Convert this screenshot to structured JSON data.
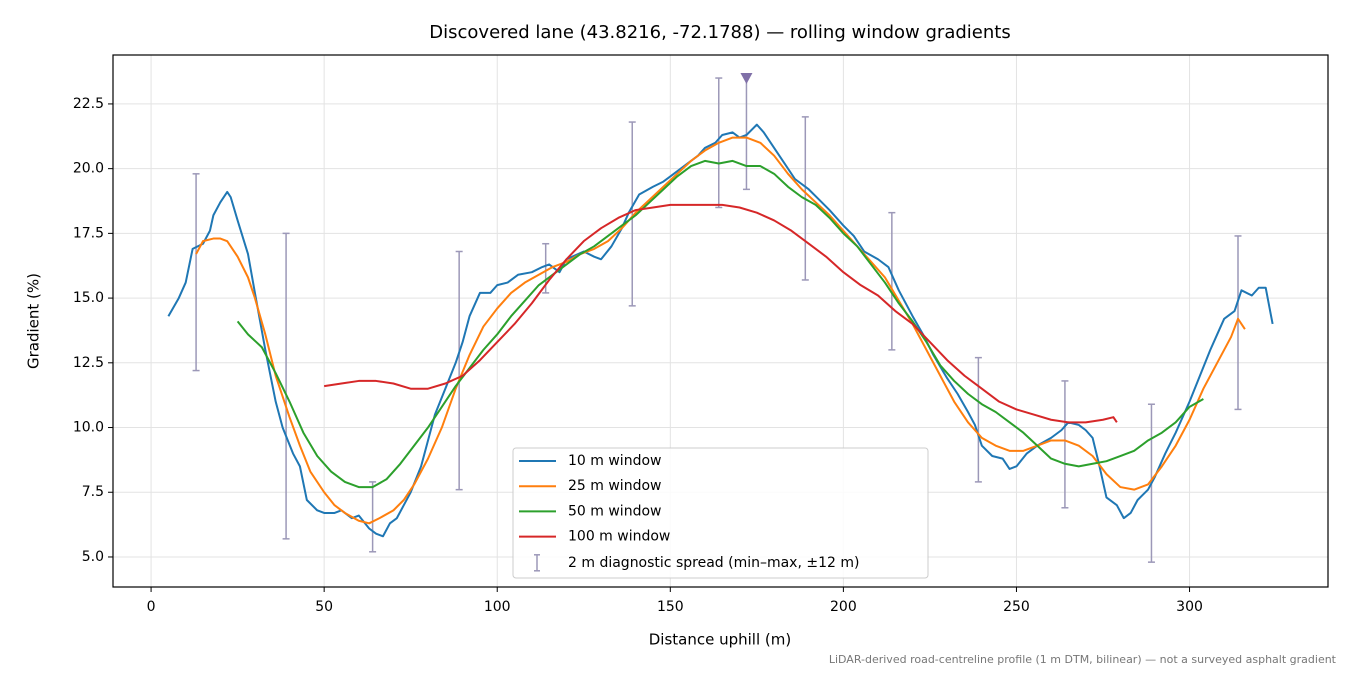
{
  "chart_data": {
    "type": "line",
    "title": "Discovered lane (43.8216, -72.1788) — rolling window gradients",
    "x_label": "Distance uphill (m)",
    "y_label": "Gradient (%)",
    "footnote": "LiDAR-derived road-centreline profile (1 m DTM, bilinear) — not a surveyed asphalt gradient",
    "xlim": [
      -11,
      340
    ],
    "ylim": [
      3.84,
      24.39
    ],
    "xticks": [
      0,
      50,
      100,
      150,
      200,
      250,
      300
    ],
    "yticks": [
      {
        "value": 5,
        "label": "5.0"
      },
      7.5,
      {
        "value": 10,
        "label": "10.0"
      },
      12.5,
      {
        "value": 15,
        "label": "15.0"
      },
      17.5,
      {
        "value": 20,
        "label": "20.0"
      },
      22.5
    ],
    "grid": true,
    "legend": "lower center",
    "series": [
      {
        "name": "10 m window",
        "color": "#1f77b4",
        "x": [
          5,
          8,
          10,
          12,
          15,
          17,
          18,
          20,
          22,
          23,
          25,
          28,
          30,
          33,
          36,
          38,
          41,
          43,
          45,
          48,
          50,
          53,
          55,
          58,
          60,
          63,
          65,
          67,
          69,
          71,
          73,
          75,
          78,
          80,
          82,
          85,
          88,
          90,
          92,
          95,
          98,
          100,
          103,
          106,
          110,
          113,
          115,
          118,
          120,
          125,
          128,
          130,
          133,
          136,
          138,
          141,
          145,
          148,
          150,
          155,
          158,
          160,
          163,
          165,
          168,
          170,
          172,
          175,
          177,
          180,
          183,
          186,
          190,
          193,
          196,
          200,
          203,
          206,
          210,
          213,
          216,
          220,
          223,
          226,
          230,
          233,
          236,
          238,
          240,
          243,
          246,
          248,
          250,
          253,
          256,
          260,
          263,
          265,
          268,
          270,
          272,
          274,
          276,
          279,
          281,
          283,
          285,
          288,
          290,
          293,
          296,
          300,
          303,
          306,
          308,
          310,
          313,
          315,
          318,
          320,
          322,
          324
        ],
        "values": [
          14.3,
          15.0,
          15.6,
          16.9,
          17.1,
          17.6,
          18.2,
          18.7,
          19.1,
          18.9,
          18.0,
          16.7,
          15.2,
          13.0,
          11.0,
          10.0,
          9.0,
          8.5,
          7.2,
          6.8,
          6.7,
          6.7,
          6.8,
          6.5,
          6.6,
          6.1,
          5.9,
          5.8,
          6.3,
          6.5,
          7.0,
          7.5,
          8.5,
          9.5,
          10.5,
          11.5,
          12.5,
          13.3,
          14.3,
          15.2,
          15.2,
          15.5,
          15.6,
          15.9,
          16.0,
          16.2,
          16.3,
          16.0,
          16.5,
          16.8,
          16.6,
          16.5,
          17.0,
          17.7,
          18.3,
          19.0,
          19.3,
          19.5,
          19.7,
          20.2,
          20.5,
          20.8,
          21.0,
          21.3,
          21.4,
          21.2,
          21.3,
          21.7,
          21.4,
          20.8,
          20.2,
          19.6,
          19.2,
          18.8,
          18.4,
          17.8,
          17.4,
          16.8,
          16.5,
          16.2,
          15.3,
          14.3,
          13.6,
          12.8,
          11.9,
          11.3,
          10.6,
          10.1,
          9.3,
          8.9,
          8.8,
          8.4,
          8.5,
          9.0,
          9.3,
          9.6,
          9.9,
          10.2,
          10.1,
          9.9,
          9.6,
          8.5,
          7.3,
          7.0,
          6.5,
          6.7,
          7.2,
          7.6,
          8.1,
          9.0,
          9.8,
          11.0,
          12.0,
          13.0,
          13.6,
          14.2,
          14.5,
          15.3,
          15.1,
          15.4,
          15.4,
          14.0
        ]
      },
      {
        "name": "25 m window",
        "color": "#ff7f0e",
        "x": [
          13,
          15,
          18,
          20,
          22,
          25,
          28,
          30,
          33,
          36,
          40,
          43,
          46,
          50,
          53,
          56,
          60,
          63,
          66,
          70,
          73,
          76,
          80,
          84,
          88,
          92,
          96,
          100,
          104,
          108,
          112,
          116,
          120,
          124,
          128,
          132,
          136,
          140,
          144,
          148,
          152,
          156,
          160,
          164,
          168,
          172,
          176,
          180,
          184,
          188,
          192,
          196,
          200,
          204,
          208,
          212,
          216,
          220,
          224,
          228,
          232,
          236,
          240,
          244,
          248,
          252,
          256,
          260,
          264,
          268,
          272,
          276,
          280,
          284,
          288,
          292,
          296,
          300,
          304,
          308,
          312,
          314,
          316
        ],
        "values": [
          16.7,
          17.2,
          17.3,
          17.3,
          17.2,
          16.6,
          15.8,
          15.0,
          13.6,
          12.0,
          10.4,
          9.3,
          8.3,
          7.5,
          7.0,
          6.7,
          6.4,
          6.3,
          6.5,
          6.8,
          7.2,
          7.8,
          8.8,
          10.0,
          11.5,
          12.8,
          13.9,
          14.6,
          15.2,
          15.6,
          15.9,
          16.2,
          16.4,
          16.7,
          16.9,
          17.2,
          17.7,
          18.3,
          18.8,
          19.3,
          19.8,
          20.3,
          20.7,
          21.0,
          21.2,
          21.2,
          21.0,
          20.5,
          19.8,
          19.2,
          18.7,
          18.2,
          17.6,
          17.0,
          16.4,
          15.8,
          14.9,
          14.0,
          13.0,
          12.0,
          11.0,
          10.2,
          9.6,
          9.3,
          9.1,
          9.1,
          9.3,
          9.5,
          9.5,
          9.3,
          8.9,
          8.2,
          7.7,
          7.6,
          7.8,
          8.5,
          9.3,
          10.3,
          11.5,
          12.5,
          13.5,
          14.2,
          13.8
        ]
      },
      {
        "name": "50 m window",
        "color": "#2ca02c",
        "x": [
          25,
          28,
          32,
          36,
          40,
          44,
          48,
          52,
          56,
          60,
          64,
          68,
          72,
          76,
          80,
          84,
          88,
          92,
          96,
          100,
          104,
          108,
          112,
          116,
          120,
          124,
          128,
          132,
          136,
          140,
          144,
          148,
          152,
          156,
          160,
          164,
          168,
          172,
          176,
          180,
          184,
          188,
          192,
          196,
          200,
          204,
          208,
          212,
          216,
          220,
          224,
          228,
          232,
          236,
          240,
          244,
          248,
          252,
          256,
          260,
          264,
          268,
          272,
          276,
          280,
          284,
          288,
          292,
          296,
          300,
          304
        ],
        "values": [
          14.1,
          13.6,
          13.1,
          12.1,
          11.0,
          9.8,
          8.9,
          8.3,
          7.9,
          7.7,
          7.7,
          8.0,
          8.6,
          9.3,
          10.0,
          10.8,
          11.6,
          12.3,
          13.0,
          13.6,
          14.3,
          14.9,
          15.5,
          15.9,
          16.3,
          16.7,
          17.0,
          17.4,
          17.8,
          18.2,
          18.7,
          19.2,
          19.7,
          20.1,
          20.3,
          20.2,
          20.3,
          20.1,
          20.1,
          19.8,
          19.3,
          18.9,
          18.6,
          18.1,
          17.5,
          17.0,
          16.3,
          15.6,
          14.8,
          14.1,
          13.3,
          12.4,
          11.8,
          11.3,
          10.9,
          10.6,
          10.2,
          9.8,
          9.3,
          8.8,
          8.6,
          8.5,
          8.6,
          8.7,
          8.9,
          9.1,
          9.5,
          9.8,
          10.2,
          10.8,
          11.1
        ]
      },
      {
        "name": "100 m window",
        "color": "#d62728",
        "x": [
          50,
          55,
          60,
          65,
          70,
          75,
          80,
          85,
          90,
          95,
          100,
          105,
          110,
          115,
          120,
          125,
          130,
          135,
          140,
          145,
          150,
          155,
          160,
          165,
          170,
          175,
          180,
          185,
          190,
          195,
          200,
          205,
          210,
          215,
          220,
          225,
          230,
          235,
          240,
          245,
          250,
          255,
          260,
          265,
          270,
          275,
          278,
          279
        ],
        "values": [
          11.6,
          11.7,
          11.8,
          11.8,
          11.7,
          11.5,
          11.5,
          11.7,
          12.0,
          12.6,
          13.3,
          14.0,
          14.8,
          15.7,
          16.5,
          17.2,
          17.7,
          18.1,
          18.4,
          18.5,
          18.6,
          18.6,
          18.6,
          18.6,
          18.5,
          18.3,
          18.0,
          17.6,
          17.1,
          16.6,
          16.0,
          15.5,
          15.1,
          14.5,
          14.0,
          13.3,
          12.6,
          12.0,
          11.5,
          11.0,
          10.7,
          10.5,
          10.3,
          10.2,
          10.2,
          10.3,
          10.4,
          10.2
        ]
      }
    ],
    "errorbars": {
      "name": "2 m diagnostic spread (min–max, ±12 m)",
      "color": "#9c98b8",
      "marker_color": "#8070a8",
      "x": [
        13,
        39,
        64,
        89,
        114,
        139,
        164,
        172,
        189,
        214,
        239,
        264,
        289,
        314
      ],
      "min": [
        12.2,
        5.7,
        5.2,
        7.6,
        15.2,
        14.7,
        18.5,
        19.2,
        15.7,
        13.0,
        7.9,
        6.9,
        4.8,
        10.7
      ],
      "max": [
        19.8,
        17.5,
        7.9,
        16.8,
        17.1,
        21.8,
        23.5,
        null,
        22.0,
        18.3,
        12.7,
        11.8,
        10.9,
        17.4
      ]
    }
  }
}
